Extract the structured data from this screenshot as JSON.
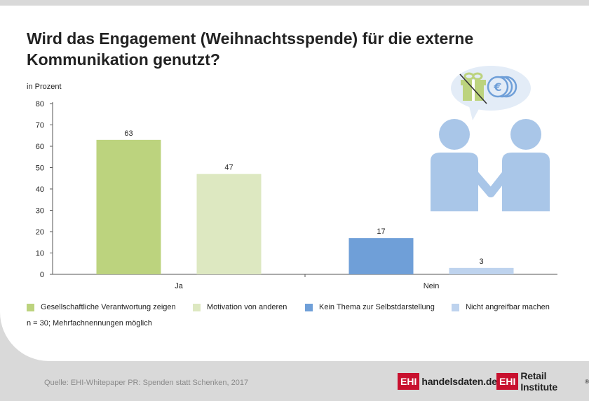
{
  "header": {
    "title_line1": "Wird das Engagement (Weihnachtsspende) für die externe",
    "title_line2": "Kommunikation genutzt?",
    "unit_label": "in Prozent"
  },
  "chart_data": {
    "type": "bar",
    "categories": [
      "Ja",
      "Nein"
    ],
    "series": [
      {
        "name": "Gesellschaftliche Verantwortung zeigen",
        "color": "#bcd37e",
        "values": [
          63,
          null
        ]
      },
      {
        "name": "Motivation von anderen",
        "color": "#dde8c1",
        "values": [
          47,
          null
        ]
      },
      {
        "name": "Kein Thema zur Selbstdarstellung",
        "color": "#6f9fd8",
        "values": [
          null,
          17
        ]
      },
      {
        "name": "Nicht angreifbar machen",
        "color": "#bed3ee",
        "values": [
          null,
          3
        ]
      }
    ],
    "ylim": [
      0,
      80
    ],
    "yticks": [
      0,
      10,
      20,
      30,
      40,
      50,
      60,
      70,
      80
    ],
    "ylabel": "in Prozent",
    "xlabel": "",
    "grid": false,
    "legend_position": "bottom"
  },
  "legend": {
    "items": [
      {
        "label": "Gesellschaftliche Verantwortung zeigen",
        "color": "#bcd37e"
      },
      {
        "label": "Motivation von anderen",
        "color": "#dde8c1"
      },
      {
        "label": "Kein Thema zur Selbstdarstellung",
        "color": "#6f9fd8"
      },
      {
        "label": "Nicht angreifbar machen",
        "color": "#bed3ee"
      }
    ]
  },
  "footer": {
    "note": "n = 30; Mehrfachnennungen möglich",
    "source": "Quelle: EHI-Whitepaper PR: Spenden statt Schenken, 2017",
    "logo1_box": "EHI",
    "logo1_text": "handelsdaten.de",
    "logo2_box": "EHI",
    "logo2_text": "Retail Institute",
    "logo2_mark": "®"
  },
  "illustration": {
    "person_color": "#a9c6e8",
    "gift_color": "#bcd37e",
    "coin_color": "#6f9fd8",
    "bubble_color": "#e3ecf7",
    "coin_symbol": "€"
  }
}
